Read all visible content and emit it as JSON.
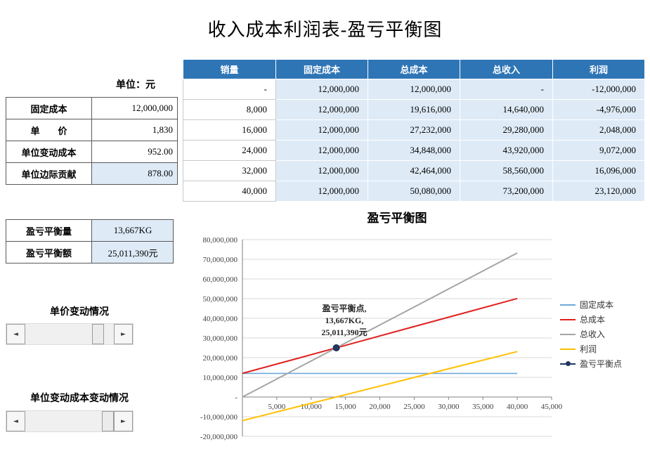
{
  "title": "收入成本利润表-盈亏平衡图",
  "unit_label": "单位：元",
  "params_table": {
    "rows": [
      {
        "label": "固定成本",
        "value": "12,000,000"
      },
      {
        "label": "单　　价",
        "value": "1,830"
      },
      {
        "label": "单位变动成本",
        "value": "952.00"
      },
      {
        "label": "单位边际贡献",
        "value": "878.00"
      }
    ]
  },
  "breakeven_table": {
    "rows": [
      {
        "label": "盈亏平衡量",
        "value": "13,667KG"
      },
      {
        "label": "盈亏平衡额",
        "value": "25,011,390元"
      }
    ]
  },
  "controls": {
    "price_label": "单价变动情况",
    "cost_label": "单位变动成本变动情况",
    "left_arrow": "◄",
    "right_arrow": "►"
  },
  "data_table": {
    "headers": [
      "销量",
      "固定成本",
      "总成本",
      "总收入",
      "利润"
    ],
    "rows": [
      [
        "-",
        "12,000,000",
        "12,000,000",
        "-",
        "-12,000,000"
      ],
      [
        "8,000",
        "12,000,000",
        "19,616,000",
        "14,640,000",
        "-4,976,000"
      ],
      [
        "16,000",
        "12,000,000",
        "27,232,000",
        "29,280,000",
        "2,048,000"
      ],
      [
        "24,000",
        "12,000,000",
        "34,848,000",
        "43,920,000",
        "9,072,000"
      ],
      [
        "32,000",
        "12,000,000",
        "42,464,000",
        "58,560,000",
        "16,096,000"
      ],
      [
        "40,000",
        "12,000,000",
        "50,080,000",
        "73,200,000",
        "23,120,000"
      ]
    ]
  },
  "chart_data": {
    "type": "line",
    "title": "盈亏平衡图",
    "x": [
      0,
      8000,
      16000,
      24000,
      32000,
      40000
    ],
    "series": [
      {
        "name": "固定成本",
        "color": "#6FA8DC",
        "values": [
          12000000,
          12000000,
          12000000,
          12000000,
          12000000,
          12000000
        ]
      },
      {
        "name": "总成本",
        "color": "#E02020",
        "values": [
          12000000,
          19616000,
          27232000,
          34848000,
          42464000,
          50080000
        ]
      },
      {
        "name": "总收入",
        "color": "#A5A5A5",
        "values": [
          0,
          14640000,
          29280000,
          43920000,
          58560000,
          73200000
        ]
      },
      {
        "name": "利润",
        "color": "#FFC000",
        "values": [
          -12000000,
          -4976000,
          2048000,
          9072000,
          16096000,
          23120000
        ]
      }
    ],
    "breakeven_point": {
      "name": "盈亏平衡点",
      "x": 13667,
      "y": 25011390,
      "color": "#203864"
    },
    "annotation": [
      "盈亏平衡点,",
      "13,667KG,",
      "25,011,390元"
    ],
    "xlim": [
      0,
      45000
    ],
    "ylim": [
      -20000000,
      80000000
    ],
    "x_ticks": [
      "5,000",
      "10,000",
      "15,000",
      "20,000",
      "25,000",
      "30,000",
      "35,000",
      "40,000",
      "45,000"
    ],
    "y_ticks": [
      "80,000,000",
      "70,000,000",
      "60,000,000",
      "50,000,000",
      "40,000,000",
      "30,000,000",
      "20,000,000",
      "10,000,000",
      "-",
      "-10,000,000",
      "-20,000,000"
    ],
    "legend": [
      "固定成本",
      "总成本",
      "总收入",
      "利润",
      "盈亏平衡点"
    ],
    "legend_position": "right",
    "grid": "horizontal"
  }
}
